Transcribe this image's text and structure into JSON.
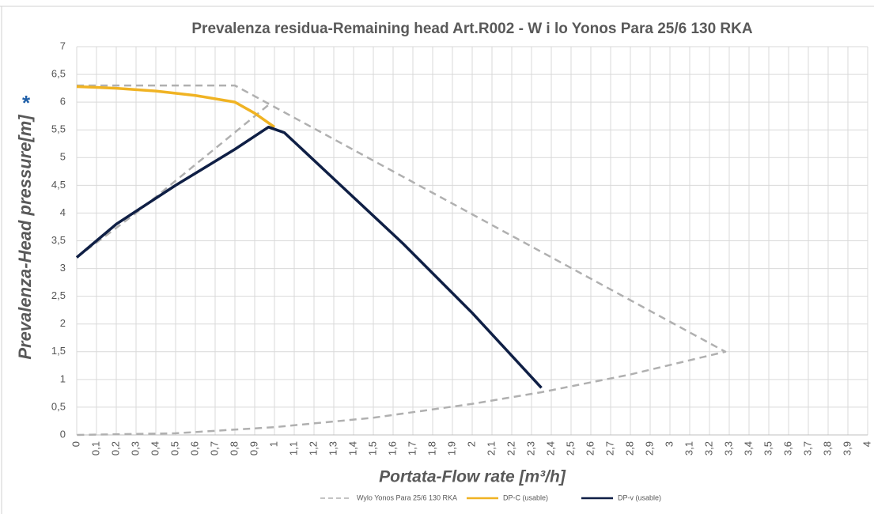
{
  "chart_data": {
    "type": "line",
    "title": "Prevalenza residua-Remaining head Art.R002 - W i lo Yonos Para 25/6 130 RKA",
    "y_label": "Prevalenza-Head pressure[m]",
    "y_label_mark": "*",
    "x_label": "Portata-Flow rate [m³/h]",
    "xlim": [
      0,
      4
    ],
    "ylim": [
      0,
      7
    ],
    "grid": true,
    "xticks": [
      0,
      {
        "value": 0.1,
        "label": "0,1"
      },
      {
        "value": 0.2,
        "label": "0,2"
      },
      {
        "value": 0.3,
        "label": "0,3"
      },
      {
        "value": 0.4,
        "label": "0,4"
      },
      {
        "value": 0.5,
        "label": "0,5"
      },
      {
        "value": 0.6,
        "label": "0,6"
      },
      {
        "value": 0.7,
        "label": "0,7"
      },
      {
        "value": 0.8,
        "label": "0,8"
      },
      {
        "value": 0.9,
        "label": "0,9"
      },
      1,
      {
        "value": 1.1,
        "label": "1,1"
      },
      {
        "value": 1.2,
        "label": "1,2"
      },
      {
        "value": 1.3,
        "label": "1,3"
      },
      {
        "value": 1.4,
        "label": "1,4"
      },
      {
        "value": 1.5,
        "label": "1,5"
      },
      {
        "value": 1.6,
        "label": "1,6"
      },
      {
        "value": 1.7,
        "label": "1,7"
      },
      {
        "value": 1.8,
        "label": "1,8"
      },
      {
        "value": 1.9,
        "label": "1,9"
      },
      2,
      {
        "value": 2.1,
        "label": "2,1"
      },
      {
        "value": 2.2,
        "label": "2,2"
      },
      {
        "value": 2.3,
        "label": "2,3"
      },
      {
        "value": 2.4,
        "label": "2,4"
      },
      {
        "value": 2.5,
        "label": "2,5"
      },
      {
        "value": 2.6,
        "label": "2,6"
      },
      {
        "value": 2.7,
        "label": "2,7"
      },
      {
        "value": 2.8,
        "label": "2,8"
      },
      {
        "value": 2.9,
        "label": "2,9"
      },
      3,
      {
        "value": 3.1,
        "label": "3,1"
      },
      {
        "value": 3.2,
        "label": "3,2"
      },
      {
        "value": 3.3,
        "label": "3,3"
      },
      {
        "value": 3.4,
        "label": "3,4"
      },
      {
        "value": 3.5,
        "label": "3,5"
      },
      {
        "value": 3.6,
        "label": "3,6"
      },
      {
        "value": 3.7,
        "label": "3,7"
      },
      {
        "value": 3.8,
        "label": "3,8"
      },
      {
        "value": 3.9,
        "label": "3,9"
      },
      4
    ],
    "yticks": [
      0,
      {
        "value": 0.5,
        "label": "0,5"
      },
      1,
      {
        "value": 1.5,
        "label": "1,5"
      },
      2,
      {
        "value": 2.5,
        "label": "2,5"
      },
      3,
      {
        "value": 3.5,
        "label": "3,5"
      },
      4,
      {
        "value": 4.5,
        "label": "4,5"
      },
      5,
      {
        "value": 5.5,
        "label": "5,5"
      },
      6,
      {
        "value": 6.5,
        "label": "6,5"
      },
      7
    ],
    "series": [
      {
        "name": "Wylo Yonos Para 25/6 130 RKA",
        "color": "#b0b0b0",
        "dashed": true,
        "x": [
          0,
          0.8,
          3.28,
          2.8,
          2.35,
          2,
          1.5,
          1,
          0.5,
          0,
          null,
          0,
          0.3,
          0.97
        ],
        "values": [
          6.3,
          6.3,
          1.5,
          1.09,
          0.77,
          0.56,
          0.31,
          0.14,
          0.03,
          0,
          null,
          3.2,
          4.0,
          5.95
        ]
      },
      {
        "name": "DP-C (usable)",
        "color": "#f0b323",
        "dashed": false,
        "x": [
          0,
          0.2,
          0.4,
          0.6,
          0.8,
          0.9,
          1.0
        ],
        "values": [
          6.28,
          6.25,
          6.2,
          6.12,
          6.0,
          5.8,
          5.55
        ]
      },
      {
        "name": "DP-v (usable)",
        "color": "#0f1f45",
        "dashed": false,
        "x": [
          0,
          0.2,
          0.5,
          0.8,
          0.97,
          1.05,
          1.35,
          1.65,
          2,
          2.35
        ],
        "values": [
          3.2,
          3.8,
          4.5,
          5.15,
          5.55,
          5.45,
          4.45,
          3.45,
          2.2,
          0.85
        ]
      }
    ]
  }
}
